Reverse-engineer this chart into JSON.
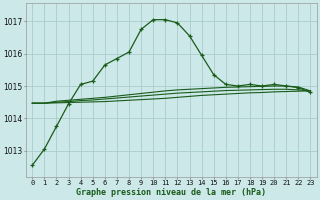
{
  "hours": [
    0,
    1,
    2,
    3,
    4,
    5,
    6,
    7,
    8,
    9,
    10,
    11,
    12,
    13,
    14,
    15,
    16,
    17,
    18,
    19,
    20,
    21,
    22,
    23
  ],
  "line_main": [
    1012.55,
    1013.05,
    1013.75,
    1014.45,
    1015.05,
    1015.15,
    1015.65,
    1015.85,
    1016.05,
    1016.75,
    1017.05,
    1017.05,
    1016.95,
    1016.55,
    1015.95,
    1015.35,
    1015.05,
    1015.0,
    1015.05,
    1015.0,
    1015.05,
    1015.0,
    1014.95,
    1014.8
  ],
  "line_flat1": [
    1014.47,
    1014.47,
    1014.48,
    1014.49,
    1014.5,
    1014.51,
    1014.52,
    1014.54,
    1014.56,
    1014.58,
    1014.6,
    1014.62,
    1014.65,
    1014.68,
    1014.71,
    1014.73,
    1014.75,
    1014.77,
    1014.79,
    1014.8,
    1014.82,
    1014.83,
    1014.84,
    1014.85
  ],
  "line_flat2": [
    1014.47,
    1014.47,
    1014.5,
    1014.52,
    1014.55,
    1014.57,
    1014.6,
    1014.63,
    1014.66,
    1014.69,
    1014.72,
    1014.75,
    1014.78,
    1014.8,
    1014.82,
    1014.84,
    1014.86,
    1014.87,
    1014.88,
    1014.89,
    1014.9,
    1014.9,
    1014.88,
    1014.85
  ],
  "line_flat3": [
    1014.47,
    1014.47,
    1014.53,
    1014.56,
    1014.59,
    1014.62,
    1014.65,
    1014.69,
    1014.73,
    1014.77,
    1014.81,
    1014.85,
    1014.88,
    1014.9,
    1014.92,
    1014.94,
    1014.96,
    1014.97,
    1014.98,
    1014.99,
    1015.0,
    1015.0,
    1014.97,
    1014.85
  ],
  "bg_color": "#cce8e8",
  "grid_color": "#aacccc",
  "line_color": "#1a5c1a",
  "ylabel_ticks": [
    1013,
    1014,
    1015,
    1016,
    1017
  ],
  "ylim": [
    1012.2,
    1017.55
  ],
  "xlabel": "Graphe pression niveau de la mer (hPa)"
}
